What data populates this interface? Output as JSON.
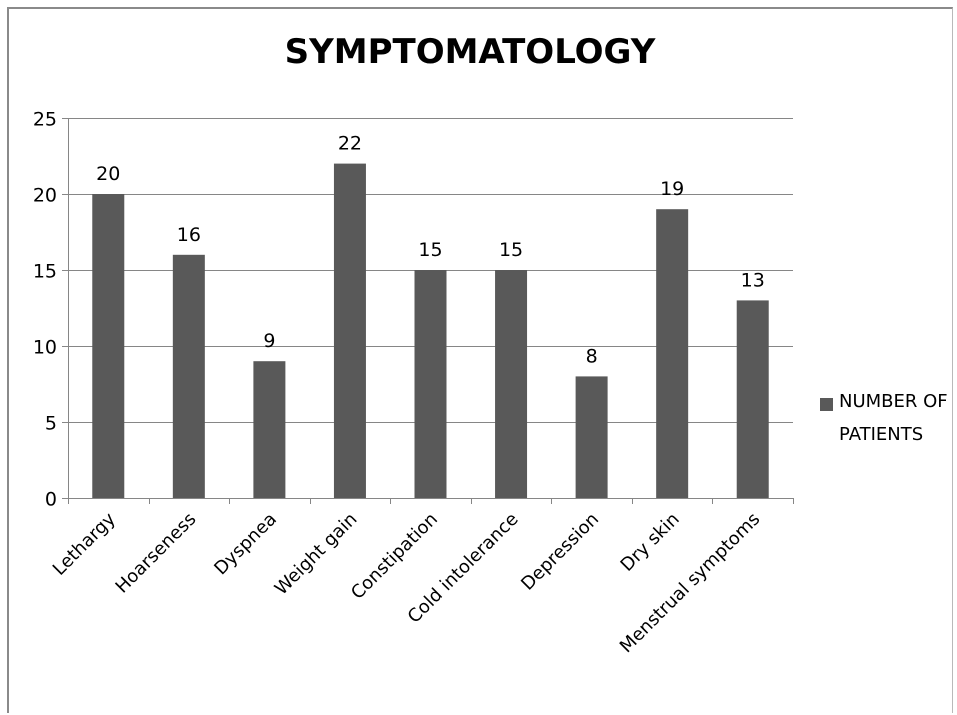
{
  "chart_data": {
    "type": "bar",
    "title": "SYMPTOMATOLOGY",
    "categories": [
      "Lethargy",
      "Hoarseness",
      "Dyspnea",
      "Weight gain",
      "Constipation",
      "Cold intolerance",
      "Depression",
      "Dry skin",
      "Menstrual symptoms"
    ],
    "series": [
      {
        "name": "NUMBER OF PATIENTS",
        "values": [
          20,
          16,
          9,
          22,
          15,
          15,
          8,
          19,
          13
        ]
      }
    ],
    "ylim": [
      0,
      25
    ],
    "yticks": [
      0,
      5,
      10,
      15,
      20,
      25
    ],
    "xlabel": "",
    "ylabel": "",
    "grid": true,
    "data_labels": true,
    "legend_position": "right",
    "colors": {
      "bar": "#595959",
      "grid": "#868686",
      "axis": "#868686"
    }
  }
}
